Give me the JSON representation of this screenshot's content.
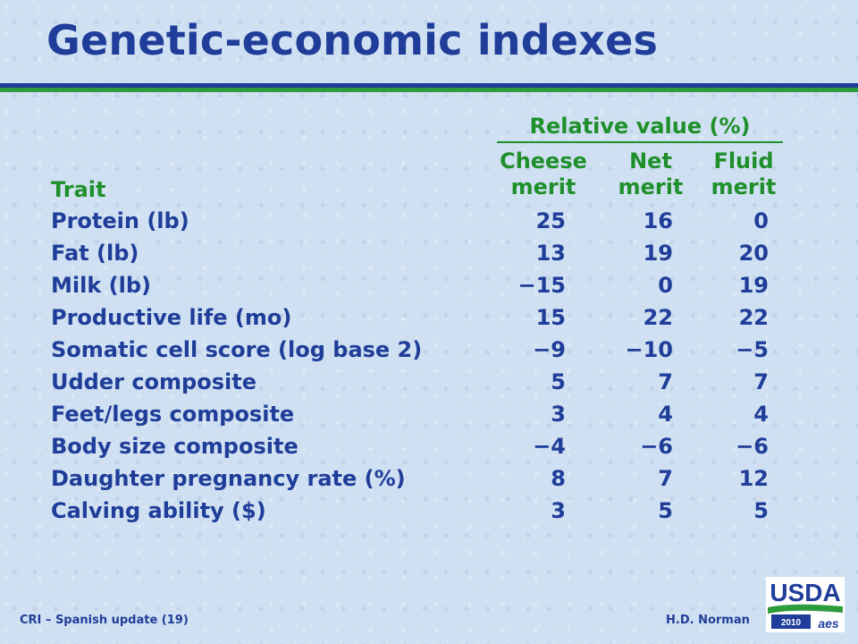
{
  "title": "Genetic-economic indexes",
  "table": {
    "group_header": "Relative value (%)",
    "trait_header": "Trait",
    "columns": [
      {
        "line1": "Cheese",
        "line2": "merit"
      },
      {
        "line1": "Net",
        "line2": "merit"
      },
      {
        "line1": "Fluid",
        "line2": "merit"
      }
    ],
    "rows": [
      {
        "trait": "Protein (lb)",
        "values": [
          "25",
          "16",
          "0"
        ]
      },
      {
        "trait": "Fat (lb)",
        "values": [
          "13",
          "19",
          "20"
        ]
      },
      {
        "trait": "Milk (lb)",
        "values": [
          "−15",
          "0",
          "19"
        ]
      },
      {
        "trait": "Productive life (mo)",
        "values": [
          "15",
          "22",
          "22"
        ]
      },
      {
        "trait": "Somatic cell score (log base 2)",
        "values": [
          "−9",
          "−10",
          "−5"
        ]
      },
      {
        "trait": "Udder composite",
        "values": [
          "5",
          "7",
          "7"
        ]
      },
      {
        "trait": "Feet/legs composite",
        "values": [
          "3",
          "4",
          "4"
        ]
      },
      {
        "trait": "Body size composite",
        "values": [
          "−4",
          "−6",
          "−6"
        ]
      },
      {
        "trait": "Daughter pregnancy rate (%)",
        "values": [
          "8",
          "7",
          "12"
        ]
      },
      {
        "trait": "Calving ability ($)",
        "values": [
          "3",
          "5",
          "5"
        ]
      }
    ]
  },
  "footer": {
    "left": "CRI – Spanish update (19)",
    "right": "H.D. Norman"
  },
  "logo": {
    "text": "USDA",
    "year": "2010",
    "badge": "aes"
  },
  "colors": {
    "navy": "#1f3d99",
    "green": "#1e8f2a",
    "background": "#cfe0f2"
  }
}
